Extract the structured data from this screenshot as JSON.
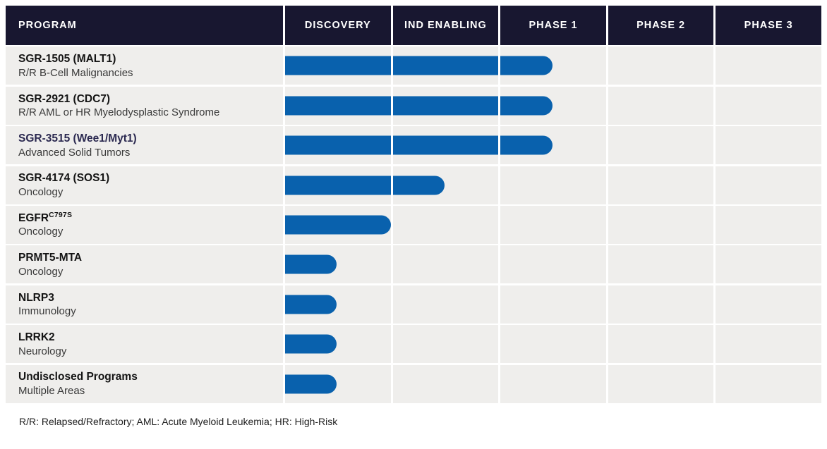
{
  "columns": [
    "PROGRAM",
    "DISCOVERY",
    "IND ENABLING",
    "PHASE 1",
    "PHASE 2",
    "PHASE 3"
  ],
  "programs": [
    {
      "name": "SGR-1505 (MALT1)",
      "sup": "",
      "indication": "R/R B-Cell Malignancies"
    },
    {
      "name": "SGR-2921 (CDC7)",
      "sup": "",
      "indication": "R/R AML or HR Myelodysplastic Syndrome"
    },
    {
      "name": "SGR-3515 (Wee1/Myt1)",
      "sup": "",
      "indication": "Advanced Solid Tumors",
      "name_color": "#2B2950"
    },
    {
      "name": "SGR-4174 (SOS1)",
      "sup": "",
      "indication": "Oncology"
    },
    {
      "name": "EGFR",
      "sup": "C797S",
      "indication": "Oncology"
    },
    {
      "name": "PRMT5-MTA",
      "sup": "",
      "indication": "Oncology"
    },
    {
      "name": "NLRP3",
      "sup": "",
      "indication": "Immunology"
    },
    {
      "name": "LRRK2",
      "sup": "",
      "indication": "Neurology"
    },
    {
      "name": "Undisclosed Programs",
      "sup": "",
      "indication": "Multiple Areas"
    }
  ],
  "footnote": "R/R: Relapsed/Refractory; AML: Acute Myeloid Leukemia; HR: High-Risk",
  "colors": {
    "bar": "#0961AD",
    "header_bg": "#181730",
    "header_text": "#FFFFFF",
    "row_bg": "#EFEEEC"
  },
  "chart_data": {
    "type": "bar",
    "orientation": "horizontal",
    "title": "Clinical pipeline by development stage",
    "categories": [
      "DISCOVERY",
      "IND ENABLING",
      "PHASE 1",
      "PHASE 2",
      "PHASE 3"
    ],
    "value_unit": "phase columns spanned by progress bar (1 = full phase, max 5)",
    "xlim": [
      0,
      5
    ],
    "grid": "column dividers only",
    "legend": "none",
    "series": [
      {
        "program": "SGR-1505 (MALT1)",
        "indication": "R/R B-Cell Malignancies",
        "value": 2.5
      },
      {
        "program": "SGR-2921 (CDC7)",
        "indication": "R/R AML or HR Myelodysplastic Syndrome",
        "value": 2.5
      },
      {
        "program": "SGR-3515 (Wee1/Myt1)",
        "indication": "Advanced Solid Tumors",
        "value": 2.5
      },
      {
        "program": "SGR-4174 (SOS1)",
        "indication": "Oncology",
        "value": 1.5
      },
      {
        "program": "EGFR^C797S",
        "indication": "Oncology",
        "value": 1.0
      },
      {
        "program": "PRMT5-MTA",
        "indication": "Oncology",
        "value": 0.5
      },
      {
        "program": "NLRP3",
        "indication": "Immunology",
        "value": 0.5
      },
      {
        "program": "LRRK2",
        "indication": "Neurology",
        "value": 0.5
      },
      {
        "program": "Undisclosed Programs",
        "indication": "Multiple Areas",
        "value": 0.5
      }
    ]
  }
}
